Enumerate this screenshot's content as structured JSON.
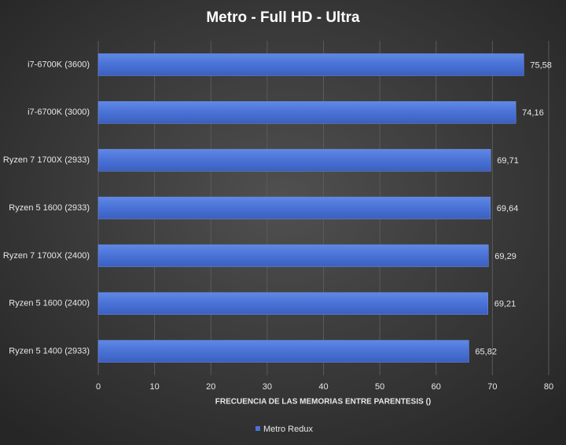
{
  "chart_data": {
    "type": "hbar",
    "title": "Metro  - Full  HD  - Ultra",
    "x_label": "FRECUENCIA DE LAS MEMORIAS  ENTRE PARENTESIS ()",
    "categories": [
      "i7-6700K (3600)",
      "i7-6700K (3000)",
      "Ryzen 7 1700X (2933)",
      "Ryzen 5 1600 (2933)",
      "Ryzen 7 1700X (2400)",
      "Ryzen 5 1600 (2400)",
      "Ryzen 5 1400 (2933)"
    ],
    "series": [
      {
        "name": "Metro Redux",
        "color": "#4a72d6",
        "values": [
          75.58,
          74.16,
          69.71,
          69.64,
          69.29,
          69.21,
          65.82
        ],
        "value_labels": [
          "75,58",
          "74,16",
          "69,71",
          "69,64",
          "69,29",
          "69,21",
          "65,82"
        ]
      }
    ],
    "xlim": [
      0,
      80
    ],
    "xticks": [
      0,
      10,
      20,
      30,
      40,
      50,
      60,
      70,
      80
    ],
    "grid": true,
    "legend": "bottom"
  }
}
